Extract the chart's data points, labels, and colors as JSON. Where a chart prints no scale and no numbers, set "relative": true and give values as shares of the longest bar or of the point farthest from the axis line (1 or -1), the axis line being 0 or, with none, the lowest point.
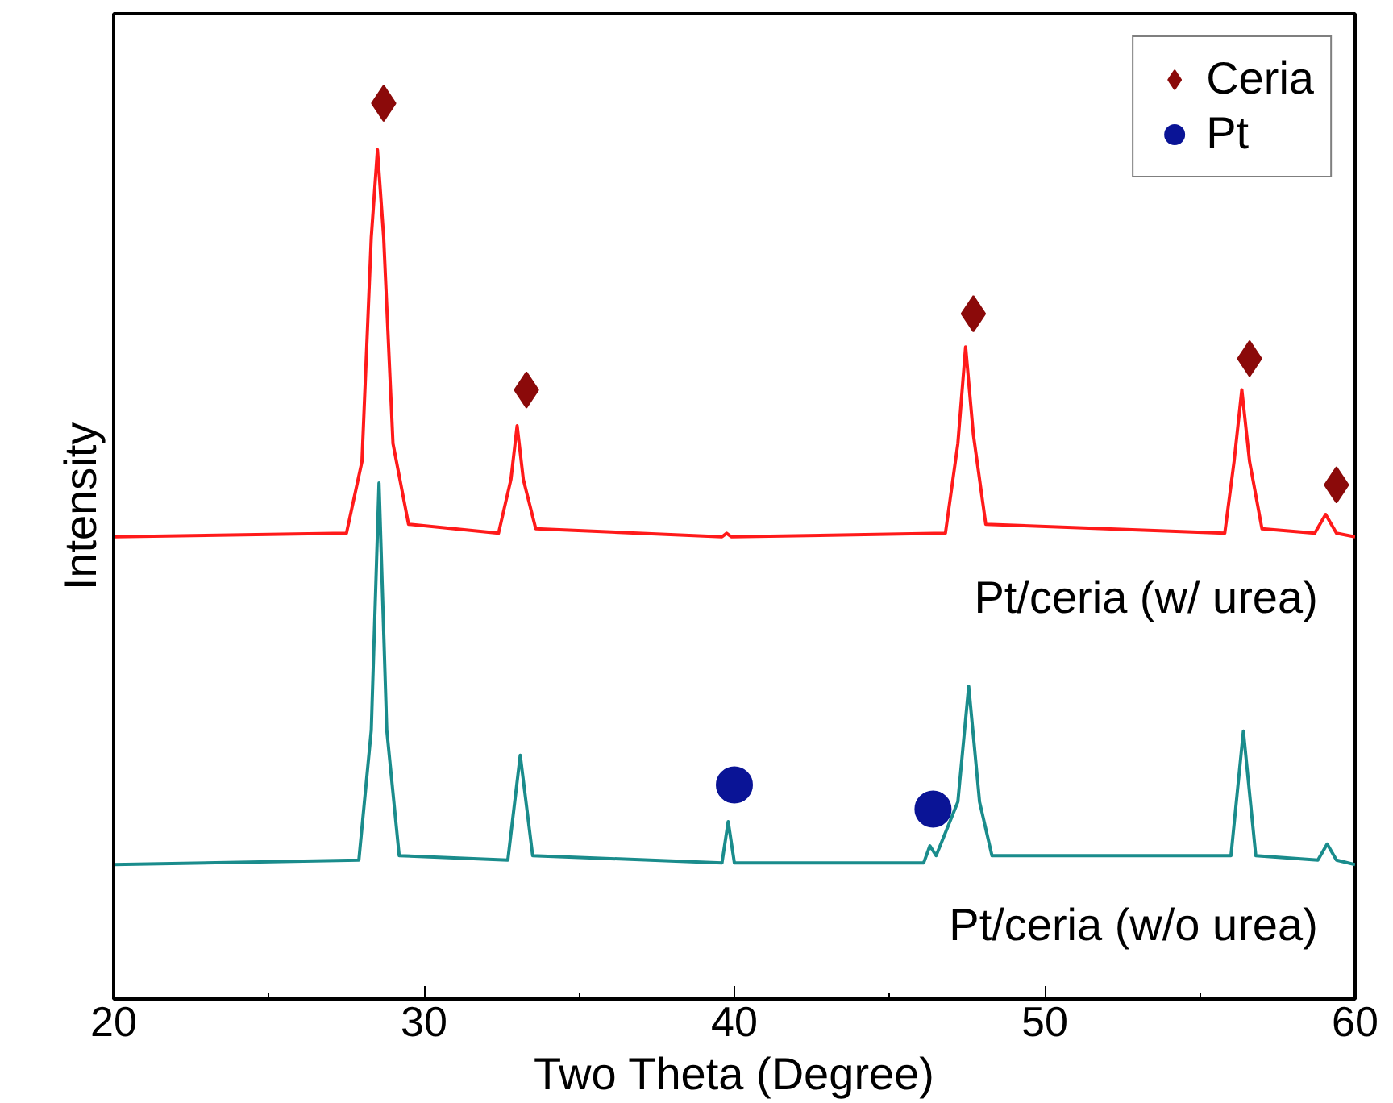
{
  "chart_data": {
    "type": "line",
    "xlabel": "Two Theta (Degree)",
    "ylabel": "Intensity",
    "relative": true,
    "xlim": [
      20,
      60
    ],
    "xticks": [
      20,
      30,
      40,
      50,
      60
    ],
    "grid": false,
    "legend": "top right",
    "series": [
      {
        "name": "Pt/ceria (w/ urea)",
        "color": "#ff1a1a",
        "marker": "none",
        "x": [
          20,
          27.5,
          28.0,
          28.3,
          28.5,
          28.7,
          29.0,
          29.5,
          32.4,
          32.8,
          33.0,
          33.2,
          33.6,
          39.6,
          39.75,
          39.9,
          46.8,
          47.2,
          47.45,
          47.7,
          48.1,
          55.8,
          56.1,
          56.35,
          56.6,
          57.0,
          58.7,
          59.05,
          59.4,
          60
        ],
        "values": [
          0.516,
          0.52,
          0.6,
          0.85,
          0.948,
          0.85,
          0.62,
          0.53,
          0.52,
          0.58,
          0.64,
          0.58,
          0.525,
          0.516,
          0.52,
          0.516,
          0.52,
          0.62,
          0.728,
          0.63,
          0.53,
          0.52,
          0.6,
          0.68,
          0.6,
          0.525,
          0.52,
          0.541,
          0.52,
          0.516
        ]
      },
      {
        "name": "Pt/ceria (w/o urea)",
        "color": "#1a8c8c",
        "marker": "none",
        "x": [
          20,
          27.9,
          28.3,
          28.55,
          28.8,
          29.2,
          32.7,
          33.1,
          33.5,
          39.6,
          39.8,
          40.0,
          46.1,
          46.3,
          46.5,
          47.2,
          47.55,
          47.9,
          48.3,
          56.0,
          56.4,
          56.8,
          58.8,
          59.1,
          59.4,
          60
        ],
        "values": [
          0.15,
          0.155,
          0.3,
          0.576,
          0.3,
          0.16,
          0.155,
          0.272,
          0.16,
          0.152,
          0.198,
          0.152,
          0.152,
          0.171,
          0.16,
          0.22,
          0.349,
          0.22,
          0.16,
          0.16,
          0.299,
          0.16,
          0.155,
          0.173,
          0.155,
          0.15
        ]
      },
      {
        "name": "Ceria",
        "type": "scatter",
        "color": "#8b0a0a",
        "marker": "diamond",
        "x": [
          28.7,
          33.3,
          47.7,
          56.6,
          59.4
        ],
        "values": [
          1.0,
          0.68,
          0.765,
          0.715,
          0.574
        ]
      },
      {
        "name": "Pt",
        "type": "scatter",
        "color": "#0a1496",
        "marker": "circle",
        "x": [
          40.0,
          46.4
        ],
        "values": [
          0.239,
          0.212
        ]
      }
    ]
  }
}
